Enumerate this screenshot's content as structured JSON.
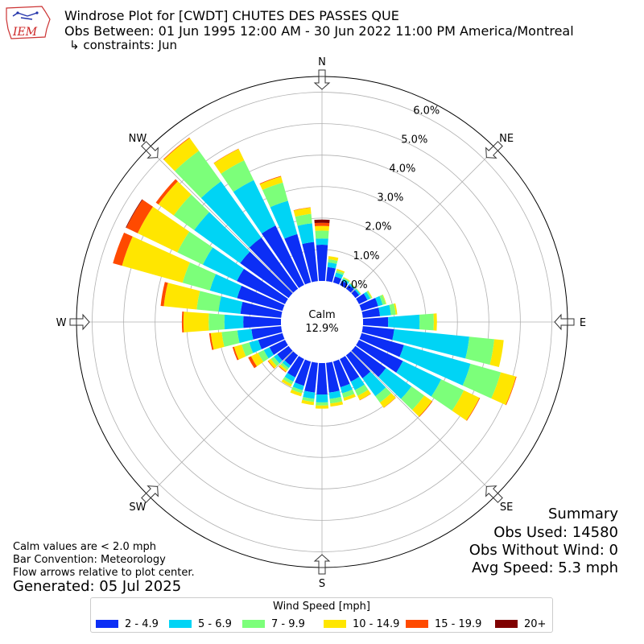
{
  "logo_text": "IEM",
  "title": {
    "line1": "Windrose Plot for [CWDT] CHUTES DES PASSES  QUE",
    "line2": "Obs Between: 01 Jun 1995 12:00 AM - 30 Jun 2022 11:00 PM America/Montreal",
    "line3": "↳ constraints: Jun"
  },
  "summary": {
    "heading": "Summary",
    "obs_used": "Obs Used: 14580",
    "obs_without_wind": "Obs Without Wind: 0",
    "avg_speed": "Avg Speed: 5.3 mph"
  },
  "notes": {
    "calm_values": "Calm values are < 2.0 mph",
    "bar_convention": "Bar Convention: Meteorology",
    "flow_arrows": "Flow arrows relative to plot center.",
    "generated": "Generated: 05 Jul 2025"
  },
  "chart_data": {
    "type": "windrose",
    "calm_label": "Calm",
    "calm_value": "12.9%",
    "calm_percent": 12.9,
    "r_max": 6.5,
    "radial_ticks": [
      {
        "value": 0,
        "label": "0.0%"
      },
      {
        "value": 1,
        "label": "1.0%"
      },
      {
        "value": 2,
        "label": "2.0%"
      },
      {
        "value": 3,
        "label": "3.0%"
      },
      {
        "value": 4,
        "label": "4.0%"
      },
      {
        "value": 5,
        "label": "5.0%"
      },
      {
        "value": 6,
        "label": "6.0%"
      }
    ],
    "directions": [
      {
        "label": "N",
        "deg": 0
      },
      {
        "label": "NE",
        "deg": 45
      },
      {
        "label": "E",
        "deg": 90
      },
      {
        "label": "SE",
        "deg": 135
      },
      {
        "label": "S",
        "deg": 180
      },
      {
        "label": "SW",
        "deg": 225
      },
      {
        "label": "W",
        "deg": 270
      },
      {
        "label": "NW",
        "deg": 315
      }
    ],
    "legend_title": "Wind Speed [mph]",
    "bins": [
      {
        "label": "2 - 4.9",
        "color": "#0c2ef5"
      },
      {
        "label": "5 - 6.9",
        "color": "#00d4f5"
      },
      {
        "label": "7 - 9.9",
        "color": "#7cff7a"
      },
      {
        "label": "10 - 14.9",
        "color": "#ffe600"
      },
      {
        "label": "15 - 19.9",
        "color": "#ff4a00"
      },
      {
        "label": "20+",
        "color": "#7f0000"
      }
    ],
    "sectors": [
      {
        "dir": 0,
        "cum": [
          1.15,
          1.35,
          1.6,
          1.75,
          1.85,
          1.95
        ]
      },
      {
        "dir": 10,
        "cum": [
          0.45,
          0.6,
          0.7,
          0.8,
          0.8,
          0.8
        ]
      },
      {
        "dir": 20,
        "cum": [
          0.2,
          0.33,
          0.4,
          0.45,
          0.45,
          0.45
        ]
      },
      {
        "dir": 30,
        "cum": [
          0.15,
          0.22,
          0.26,
          0.28,
          0.28,
          0.28
        ]
      },
      {
        "dir": 40,
        "cum": [
          0.15,
          0.2,
          0.22,
          0.23,
          0.23,
          0.23
        ]
      },
      {
        "dir": 50,
        "cum": [
          0.15,
          0.2,
          0.22,
          0.23,
          0.23,
          0.23
        ]
      },
      {
        "dir": 60,
        "cum": [
          0.3,
          0.4,
          0.45,
          0.47,
          0.47,
          0.47
        ]
      },
      {
        "dir": 70,
        "cum": [
          0.55,
          0.7,
          0.8,
          0.82,
          0.82,
          0.82
        ]
      },
      {
        "dir": 80,
        "cum": [
          0.55,
          0.9,
          1.05,
          1.1,
          1.1,
          1.1
        ]
      },
      {
        "dir": 90,
        "cum": [
          0.8,
          1.8,
          2.25,
          2.35,
          2.35,
          2.35
        ]
      },
      {
        "dir": 100,
        "cum": [
          1.0,
          3.4,
          4.2,
          4.5,
          4.5,
          4.5
        ]
      },
      {
        "dir": 110,
        "cum": [
          1.4,
          3.6,
          4.6,
          5.1,
          5.12,
          5.12
        ]
      },
      {
        "dir": 120,
        "cum": [
          1.55,
          2.9,
          3.7,
          4.25,
          4.27,
          4.27
        ]
      },
      {
        "dir": 130,
        "cum": [
          1.2,
          2.2,
          2.7,
          3.0,
          3.02,
          3.02
        ]
      },
      {
        "dir": 140,
        "cum": [
          0.9,
          1.6,
          1.85,
          2.05,
          2.06,
          2.06
        ]
      },
      {
        "dir": 150,
        "cum": [
          0.8,
          1.1,
          1.3,
          1.45,
          1.46,
          1.46
        ]
      },
      {
        "dir": 160,
        "cum": [
          0.85,
          1.05,
          1.2,
          1.3,
          1.3,
          1.3
        ]
      },
      {
        "dir": 170,
        "cum": [
          0.95,
          1.15,
          1.3,
          1.4,
          1.4,
          1.4
        ]
      },
      {
        "dir": 180,
        "cum": [
          1.0,
          1.25,
          1.35,
          1.45,
          1.45,
          1.45
        ]
      },
      {
        "dir": 190,
        "cum": [
          0.95,
          1.15,
          1.25,
          1.35,
          1.35,
          1.35
        ]
      },
      {
        "dir": 200,
        "cum": [
          0.8,
          0.95,
          1.05,
          1.15,
          1.15,
          1.15
        ]
      },
      {
        "dir": 210,
        "cum": [
          0.65,
          0.8,
          0.9,
          0.98,
          0.98,
          0.98
        ]
      },
      {
        "dir": 220,
        "cum": [
          0.4,
          0.5,
          0.58,
          0.65,
          0.67,
          0.67
        ]
      },
      {
        "dir": 230,
        "cum": [
          0.45,
          0.58,
          0.7,
          0.8,
          0.82,
          0.82
        ]
      },
      {
        "dir": 240,
        "cum": [
          0.55,
          0.75,
          0.95,
          1.2,
          1.3,
          1.3
        ]
      },
      {
        "dir": 250,
        "cum": [
          0.8,
          1.1,
          1.35,
          1.6,
          1.65,
          1.65
        ]
      },
      {
        "dir": 260,
        "cum": [
          0.95,
          1.4,
          1.9,
          2.25,
          2.3,
          2.3
        ]
      },
      {
        "dir": 270,
        "cum": [
          1.2,
          1.8,
          2.3,
          3.1,
          3.15,
          3.15
        ]
      },
      {
        "dir": 280,
        "cum": [
          1.3,
          2.0,
          2.7,
          3.75,
          3.85,
          3.85
        ]
      },
      {
        "dir": 290,
        "cum": [
          1.5,
          2.4,
          3.3,
          5.3,
          5.6,
          5.6
        ]
      },
      {
        "dir": 300,
        "cum": [
          1.7,
          2.9,
          3.8,
          5.2,
          5.6,
          5.62
        ]
      },
      {
        "dir": 310,
        "cum": [
          1.9,
          3.7,
          4.5,
          5.1,
          5.2,
          5.2
        ]
      },
      {
        "dir": 320,
        "cum": [
          2.0,
          4.2,
          5.4,
          5.9,
          5.92,
          5.92
        ]
      },
      {
        "dir": 330,
        "cum": [
          2.1,
          3.7,
          4.4,
          4.8,
          4.81,
          4.81
        ]
      },
      {
        "dir": 340,
        "cum": [
          1.6,
          2.7,
          3.3,
          3.5,
          3.52,
          3.52
        ]
      },
      {
        "dir": 350,
        "cum": [
          1.25,
          1.85,
          2.15,
          2.35,
          2.36,
          2.36
        ]
      }
    ]
  }
}
